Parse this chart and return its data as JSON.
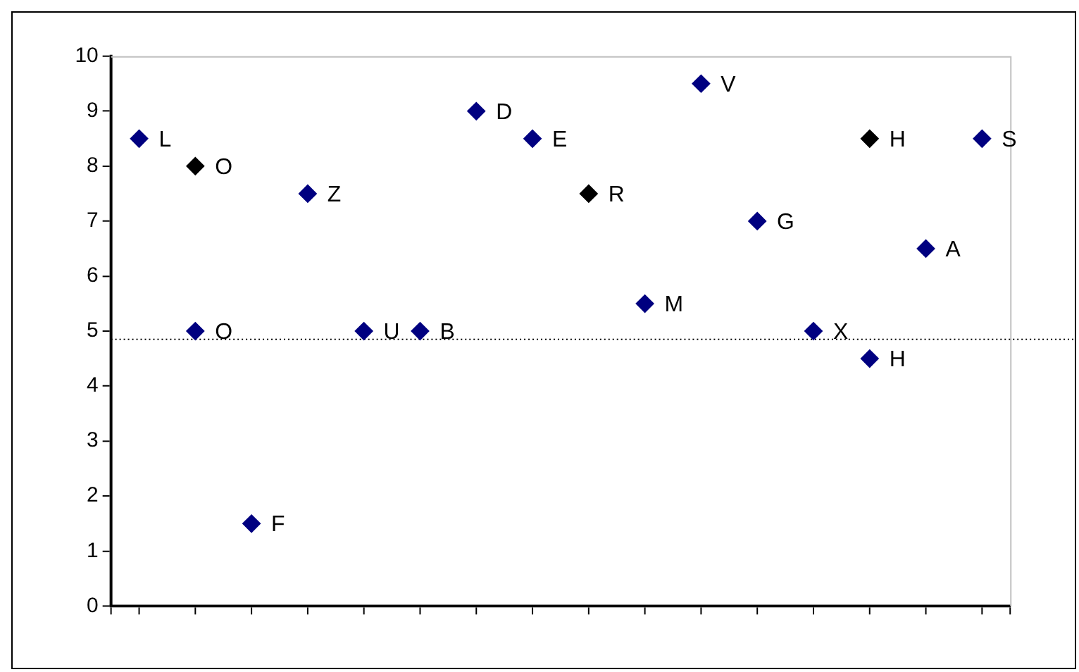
{
  "chart_data": {
    "type": "scatter",
    "categories": [
      null,
      null,
      null,
      null,
      null,
      null,
      null,
      null,
      null,
      null,
      null,
      null,
      null,
      null,
      null,
      null
    ],
    "series": [
      {
        "color": "#000080",
        "values": [
          8.5,
          5,
          1.5,
          7.5,
          5,
          5,
          9,
          8.5,
          null,
          5.5,
          9.5,
          7,
          5,
          4.5,
          6.5,
          8.5
        ],
        "value_labels": [
          "L",
          "O",
          "F",
          "Z",
          "U",
          "B",
          "D",
          "E",
          null,
          "M",
          "V",
          "G",
          "X",
          "H",
          "A",
          "S"
        ]
      },
      {
        "color": "#000000",
        "values": [
          null,
          8,
          null,
          null,
          null,
          null,
          null,
          null,
          7.5,
          null,
          null,
          null,
          null,
          8.5,
          null,
          null
        ],
        "value_labels": [
          null,
          "O",
          null,
          null,
          null,
          null,
          null,
          null,
          "R",
          null,
          null,
          null,
          null,
          "H",
          null,
          null
        ]
      }
    ],
    "ylim": [
      0,
      10
    ],
    "yticks": [
      0,
      1,
      2,
      3,
      4,
      5,
      6,
      7,
      8,
      9,
      10
    ],
    "tick_labels": "y",
    "marker": "diamond",
    "ref_lines": [
      {
        "axis": "y",
        "value": 4.85,
        "line_style": "dotted",
        "color": "#000000"
      }
    ]
  }
}
